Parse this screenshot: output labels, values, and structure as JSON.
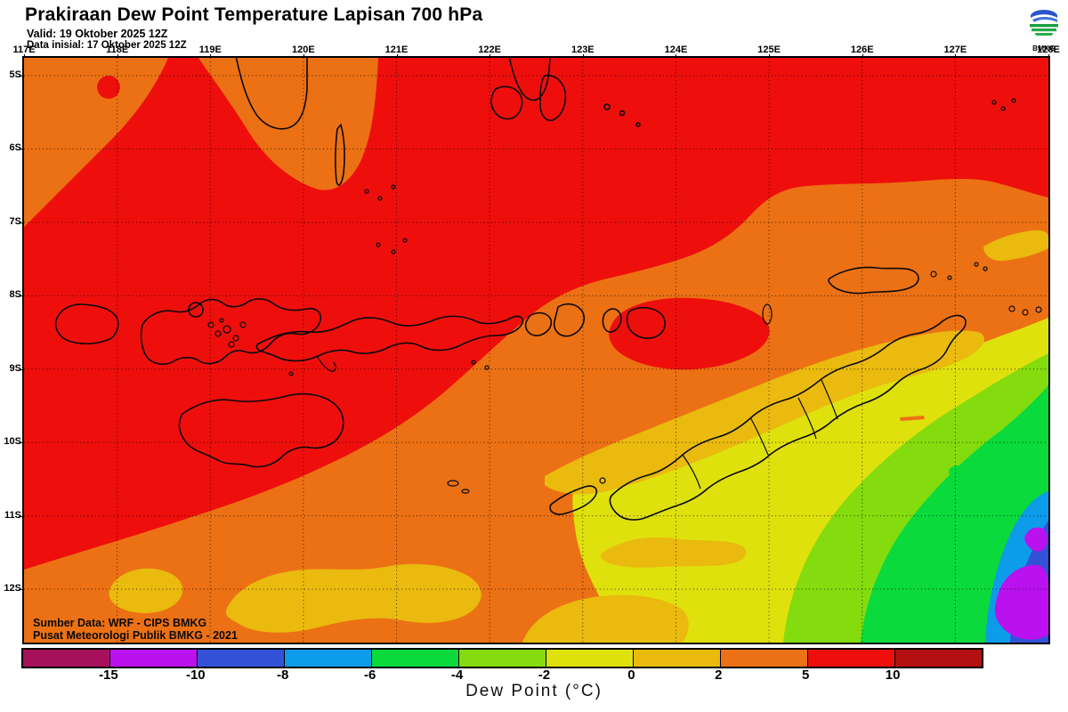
{
  "header": {
    "title": "Prakiraan Dew Point Temperature Lapisan 700 hPa",
    "valid_line": "Valid: 19 Oktober 2025 12Z",
    "init_line": "Data inisial: 17 Oktober 2025 12Z"
  },
  "logo": {
    "label": "BMKG"
  },
  "map": {
    "lon_labels": [
      "117E",
      "118E",
      "119E",
      "120E",
      "121E",
      "122E",
      "123E",
      "124E",
      "125E",
      "126E",
      "127E",
      "128E"
    ],
    "lat_labels": [
      "5S",
      "6S",
      "7S",
      "8S",
      "9S",
      "10S",
      "11S",
      "12S"
    ],
    "credit_line1": "Sumber Data: WRF - CIPS BMKG",
    "credit_line2": "Pusat Meteorologi Publik BMKG - 2021"
  },
  "colorbar": {
    "title": "Dew Point (°C)",
    "tick_labels": [
      "-15",
      "-10",
      "-8",
      "-6",
      "-4",
      "-2",
      "0",
      "2",
      "5",
      "10"
    ],
    "segment_colors": [
      "#A6105A",
      "#BA12EE",
      "#3352D8",
      "#0C9CEA",
      "#0ADA3C",
      "#84DB0D",
      "#DFE10D",
      "#EABA0F",
      "#EC7114",
      "#EE0F0D",
      "#B21011"
    ],
    "segment_meanings": [
      "< -15",
      "-15 to -10",
      "-10 to -8",
      "-8 to -6",
      "-6 to -4",
      "-4 to -2",
      "-2 to 0",
      "0 to 2",
      "2 to 5",
      "5 to 10",
      "> 10"
    ]
  }
}
